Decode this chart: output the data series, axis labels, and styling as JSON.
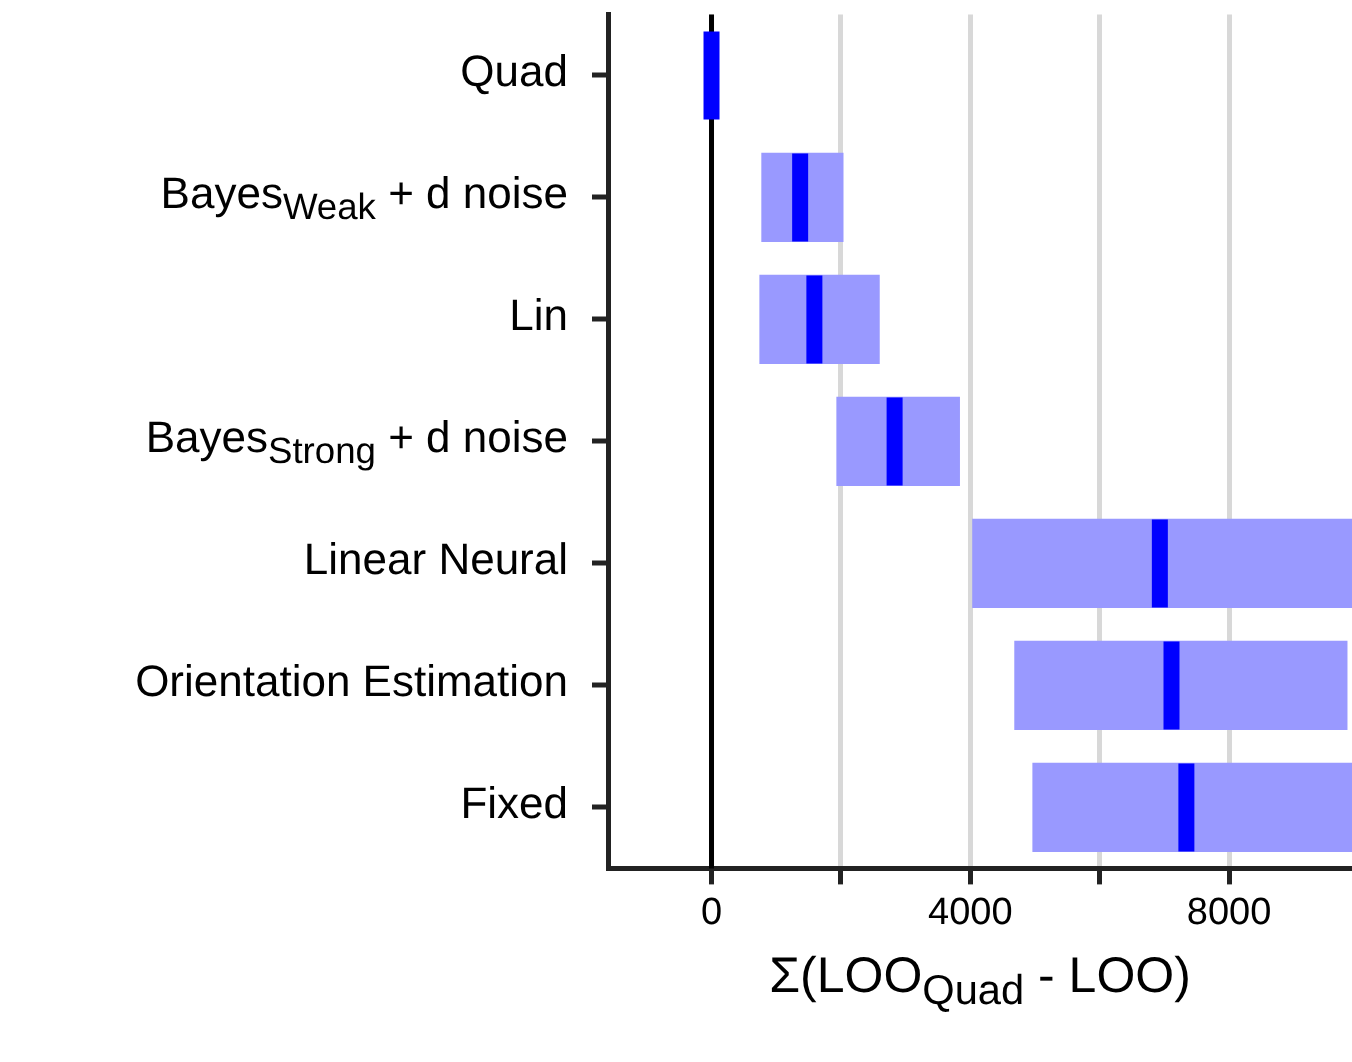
{
  "chart_data": {
    "type": "box",
    "orientation": "horizontal",
    "xlabel": "Σ(LOO$_{Quad}$ - LOO)",
    "categories": [
      "Quad",
      "Bayes$_{Weak}$ + d noise",
      "Lin",
      "Bayes$_{Strong}$ + d noise",
      "Linear Neural",
      "Orientation Estimation",
      "Fixed"
    ],
    "series": [
      {
        "color": "#9999ff",
        "boxes": [
          {
            "low": 0,
            "q1": 0,
            "median": 0,
            "q3": 0,
            "high": 0
          },
          {
            "low": 780,
            "q1": 780,
            "median": 1370,
            "q3": 2030,
            "high": 2030
          },
          {
            "low": 750,
            "q1": 750,
            "median": 1590,
            "q3": 2590,
            "high": 2590
          },
          {
            "low": 1940,
            "q1": 1940,
            "median": 2830,
            "q3": 3830,
            "high": 3830
          },
          {
            "low": 4040,
            "q1": 4040,
            "median": 6930,
            "q3": 9900,
            "high": 9900
          },
          {
            "low": 4690,
            "q1": 4690,
            "median": 7110,
            "q3": 9820,
            "high": 9820
          },
          {
            "low": 4970,
            "q1": 4970,
            "median": 7340,
            "q3": 9900,
            "high": 9900
          }
        ]
      }
    ],
    "xlim": [
      -1600,
      9900
    ],
    "xticks": [
      0,
      {
        "value": 2000,
        "label": null
      },
      4000,
      {
        "value": 6000,
        "label": null
      },
      8000
    ],
    "ref_lines": [
      {
        "axis": "x",
        "value": 0,
        "color": "#000000"
      }
    ],
    "grid": "x",
    "legend": false
  }
}
